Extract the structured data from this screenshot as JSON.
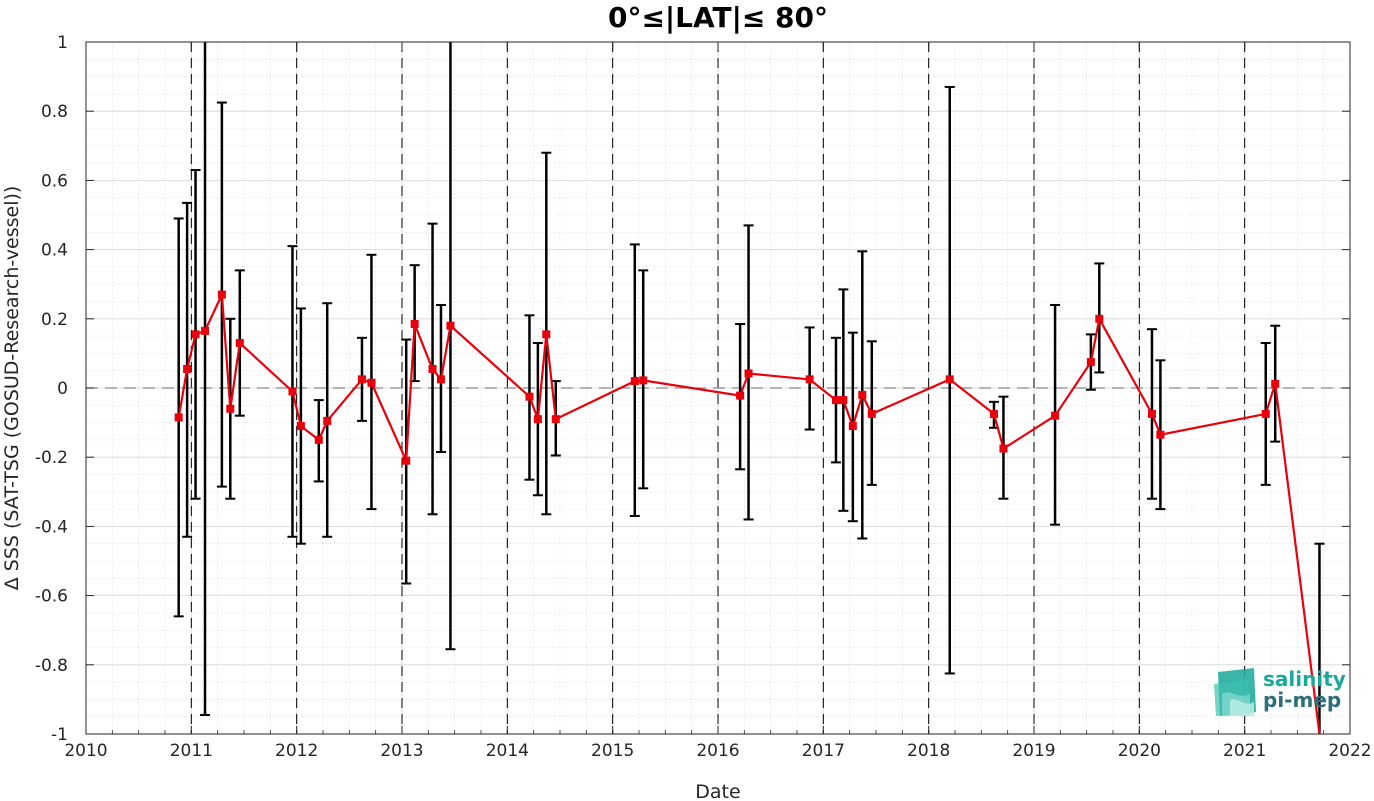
{
  "chart_data": {
    "type": "line",
    "title": "0°≤|LAT|≤ 80°",
    "xlabel": "Date",
    "ylabel": "Δ SSS (SAT-TSG (GOSUD-Research-vessel))",
    "xlim": [
      2010,
      2022
    ],
    "ylim": [
      -1,
      1
    ],
    "xticks": [
      "2010",
      "2011",
      "2012",
      "2013",
      "2014",
      "2015",
      "2016",
      "2017",
      "2018",
      "2019",
      "2020",
      "2021",
      "2022"
    ],
    "yticks": [
      "-1",
      "-0.8",
      "-0.6",
      "-0.4",
      "-0.2",
      "0",
      "0.2",
      "0.4",
      "0.6",
      "0.8",
      "1"
    ],
    "year_boundaries": [
      2011,
      2012,
      2013,
      2014,
      2015,
      2016,
      2017,
      2018,
      2019,
      2020,
      2021
    ],
    "zero_line": 0,
    "grid": true,
    "colors": {
      "line": "#e8000b",
      "marker": "#e8000b",
      "errorbar": "#000000",
      "zero_line": "#888888"
    },
    "series": [
      {
        "x": [
          2010.88,
          2010.96,
          2011.04,
          2011.13,
          2011.29,
          2011.37,
          2011.46,
          2011.96,
          2012.04,
          2012.21,
          2012.29,
          2012.62,
          2012.71,
          2013.04,
          2013.12,
          2013.29,
          2013.37,
          2013.46,
          2014.21,
          2014.29,
          2014.37,
          2014.46,
          2015.21,
          2015.29,
          2016.21,
          2016.29,
          2016.87,
          2017.12,
          2017.19,
          2017.28,
          2017.37,
          2017.46,
          2018.2,
          2018.62,
          2018.71,
          2019.2,
          2019.54,
          2019.62,
          2020.12,
          2020.2,
          2021.2,
          2021.29,
          2021.71
        ],
        "y": [
          -0.085,
          0.055,
          0.155,
          0.165,
          0.27,
          -0.06,
          0.13,
          -0.01,
          -0.11,
          -0.15,
          -0.095,
          0.025,
          0.015,
          -0.21,
          0.185,
          0.055,
          0.025,
          0.18,
          -0.025,
          -0.09,
          0.155,
          -0.09,
          0.02,
          0.022,
          -0.022,
          0.042,
          0.025,
          -0.035,
          -0.035,
          -0.11,
          -0.02,
          -0.075,
          0.025,
          -0.075,
          -0.175,
          -0.08,
          0.075,
          0.2,
          -0.075,
          -0.135,
          -0.075,
          0.012,
          -1.0
        ],
        "upper": [
          0.49,
          0.535,
          0.63,
          1.0,
          0.825,
          0.2,
          0.34,
          0.41,
          0.23,
          -0.035,
          0.245,
          0.145,
          0.385,
          0.14,
          0.355,
          0.475,
          0.24,
          1.0,
          0.21,
          0.13,
          0.68,
          0.02,
          0.415,
          0.34,
          0.185,
          0.47,
          0.175,
          0.145,
          0.285,
          0.16,
          0.395,
          0.135,
          0.87,
          -0.04,
          -0.025,
          0.24,
          0.155,
          0.36,
          0.17,
          0.08,
          0.13,
          0.18,
          -0.45
        ],
        "lower": [
          -0.66,
          -0.43,
          -0.32,
          -0.945,
          -0.285,
          -0.32,
          -0.08,
          -0.43,
          -0.45,
          -0.27,
          -0.43,
          -0.095,
          -0.35,
          -0.565,
          0.02,
          -0.365,
          -0.185,
          -0.755,
          -0.265,
          -0.31,
          -0.365,
          -0.195,
          -0.37,
          -0.29,
          -0.235,
          -0.38,
          -0.12,
          -0.215,
          -0.355,
          -0.385,
          -0.435,
          -0.28,
          -0.825,
          -0.115,
          -0.32,
          -0.395,
          -0.005,
          0.045,
          -0.32,
          -0.35,
          -0.28,
          -0.155,
          -1.0
        ]
      }
    ]
  },
  "logo": {
    "line1": "salinity",
    "line2": "pi-mep",
    "color1": "#1aa89a",
    "color2": "#2c6f7a"
  }
}
